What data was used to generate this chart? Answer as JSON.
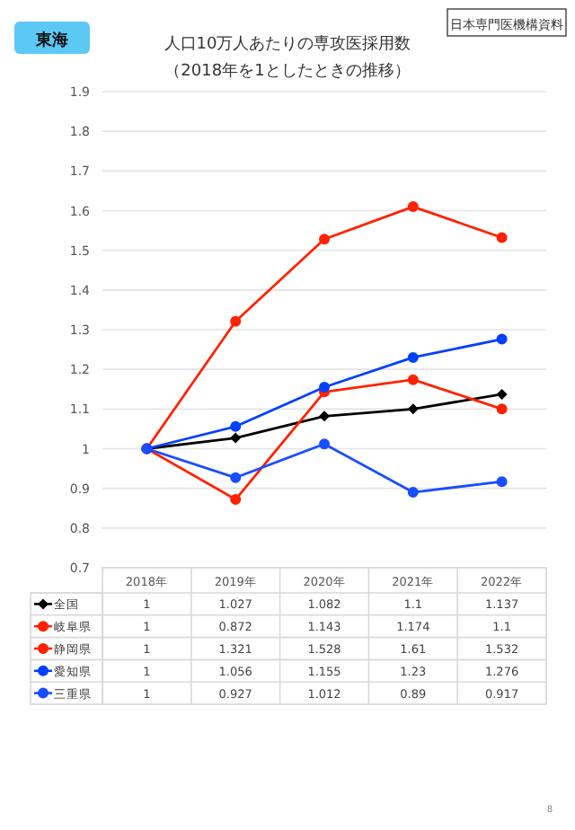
{
  "chart_data": {
    "type": "line",
    "title": "人口10万人あたりの専攻医採用数",
    "subtitle": "（2018年を1としたときの推移）",
    "annotations": [
      "東海",
      "日本専門医機構資料",
      "8"
    ],
    "categories": [
      "2018年",
      "2019年",
      "2020年",
      "2021年",
      "2022年"
    ],
    "series": [
      {
        "name": "全国",
        "color": "#000000",
        "marker": "diamond",
        "values": [
          1,
          1.027,
          1.082,
          1.1,
          1.137
        ]
      },
      {
        "name": "岐阜県",
        "color": "#ff2200",
        "marker": "circle",
        "values": [
          1,
          0.872,
          1.143,
          1.174,
          1.1
        ]
      },
      {
        "name": "静岡県",
        "color": "#ff2200",
        "marker": "circle",
        "values": [
          1,
          1.321,
          1.528,
          1.61,
          1.532
        ]
      },
      {
        "name": "愛知県",
        "color": "#0040ff",
        "marker": "circle",
        "values": [
          1,
          1.056,
          1.155,
          1.23,
          1.276
        ]
      },
      {
        "name": "三重県",
        "color": "#1a4dff",
        "marker": "circle",
        "values": [
          1,
          0.927,
          1.012,
          0.89,
          0.917
        ]
      }
    ],
    "ylim": [
      0.7,
      1.9
    ],
    "yticks": [
      0.7,
      0.8,
      0.9,
      1,
      1.1,
      1.2,
      1.3,
      1.4,
      1.5,
      1.6,
      1.7,
      1.8,
      1.9
    ],
    "grid": "y",
    "legend": "bottom",
    "data_labels": true
  }
}
